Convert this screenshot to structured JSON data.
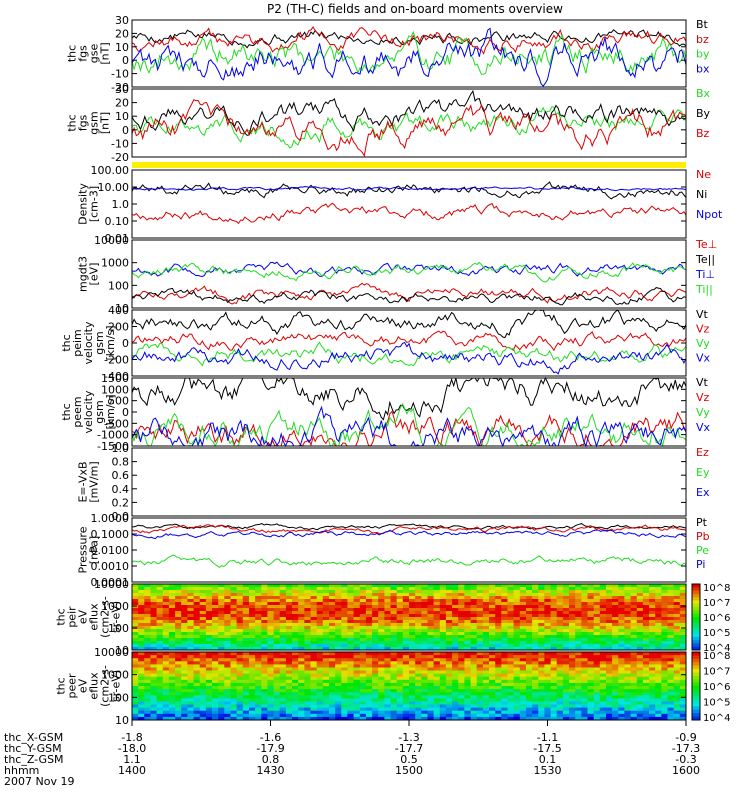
{
  "title": "P2 (TH-C) fields and on-board moments overview",
  "x_axis": {
    "rows": [
      {
        "label": "thc_X-GSM",
        "values": [
          "-1.8",
          "-1.6",
          "-1.3",
          "-1.1",
          "-0.9"
        ]
      },
      {
        "label": "thc_Y-GSM",
        "values": [
          "-18.0",
          "-17.9",
          "-17.7",
          "-17.5",
          "-17.3"
        ]
      },
      {
        "label": "thc_Z-GSM",
        "values": [
          "1.1",
          "0.8",
          "0.5",
          "0.1",
          "-0.3"
        ]
      },
      {
        "label": "hhmm",
        "values": [
          "1400",
          "1430",
          "1500",
          "1530",
          "1600"
        ]
      }
    ],
    "date": "2007 Nov 19"
  },
  "colors": {
    "black": "#000000",
    "red": "#dd0000",
    "green": "#22dd22",
    "blue": "#0000ee",
    "yellow": "#ffee00"
  },
  "chart_data": [
    {
      "type": "line",
      "ylabel": [
        "thc",
        "fgs",
        "gse",
        "[nT]"
      ],
      "ylim": [
        -20,
        30
      ],
      "yticks": [
        -20,
        -10,
        0,
        10,
        20,
        30
      ],
      "series": [
        {
          "name": "Bt",
          "color": "black",
          "level": 18,
          "amp": 3
        },
        {
          "name": "bz",
          "color": "red",
          "level": 15,
          "amp": 4
        },
        {
          "name": "by",
          "color": "green",
          "level": 3,
          "amp": 7
        },
        {
          "name": "bx",
          "color": "blue",
          "level": 2,
          "amp": 8
        }
      ]
    },
    {
      "type": "line",
      "ylabel": [
        "thc",
        "fgs",
        "gsm",
        "[nT]"
      ],
      "ylim": [
        -20,
        30
      ],
      "yticks": [
        -20,
        -10,
        0,
        10,
        20,
        30
      ],
      "series": [
        {
          "name": "Bx",
          "color": "green",
          "level": 5,
          "amp": 5
        },
        {
          "name": "By",
          "color": "black",
          "level": 12,
          "amp": 5
        },
        {
          "name": "Bz",
          "color": "red",
          "level": 0,
          "amp": 6
        }
      ]
    },
    {
      "type": "line",
      "ylabel": [
        "Density",
        "[cm-3]"
      ],
      "log": true,
      "ylim": [
        0.01,
        100
      ],
      "yticks": [
        "0.01",
        "0.10",
        "1.0",
        "10.00",
        "100.00"
      ],
      "series": [
        {
          "name": "Ne",
          "color": "red",
          "level": 0.3,
          "amp": 0.4
        },
        {
          "name": "Ni",
          "color": "black",
          "level": 7,
          "amp": 0.4
        },
        {
          "name": "Npot",
          "color": "blue",
          "level": 8,
          "amp": 0.1
        }
      ]
    },
    {
      "type": "line",
      "ylabel": [
        "mgdt3",
        "[eV]"
      ],
      "log": true,
      "ylim": [
        10,
        10000
      ],
      "yticks": [
        "10",
        "100",
        "1000",
        "10000"
      ],
      "series": [
        {
          "name": "Te⊥",
          "color": "red",
          "level": 40,
          "amp": 0.3
        },
        {
          "name": "Te||",
          "color": "black",
          "level": 30,
          "amp": 0.3
        },
        {
          "name": "Ti⊥",
          "color": "blue",
          "level": 500,
          "amp": 0.3
        },
        {
          "name": "Ti||",
          "color": "green",
          "level": 450,
          "amp": 0.3
        }
      ]
    },
    {
      "type": "line",
      "ylabel": [
        "thc",
        "peim",
        "velocity",
        "gsm",
        "[km/s]"
      ],
      "ylim": [
        -400,
        400
      ],
      "yticks": [
        -400,
        -200,
        0,
        200,
        400
      ],
      "series": [
        {
          "name": "Vt",
          "color": "black",
          "level": 250,
          "amp": 60
        },
        {
          "name": "Vz",
          "color": "red",
          "level": 30,
          "amp": 50
        },
        {
          "name": "Vy",
          "color": "green",
          "level": -120,
          "amp": 60
        },
        {
          "name": "Vx",
          "color": "blue",
          "level": -180,
          "amp": 60
        }
      ]
    },
    {
      "type": "line",
      "ylabel": [
        "thc",
        "peem",
        "velocity",
        "gsm",
        "[km/s]"
      ],
      "ylim": [
        -1500,
        1500
      ],
      "yticks": [
        -1500,
        -1000,
        -500,
        0,
        500,
        1000,
        1500
      ],
      "series": [
        {
          "name": "Vt",
          "color": "black",
          "level": 1000,
          "amp": 400
        },
        {
          "name": "Vz",
          "color": "red",
          "level": -700,
          "amp": 400
        },
        {
          "name": "Vy",
          "color": "green",
          "level": -800,
          "amp": 400
        },
        {
          "name": "Vx",
          "color": "blue",
          "level": -1000,
          "amp": 400
        }
      ]
    },
    {
      "type": "line",
      "ylabel": [
        "E=-VxB",
        "[mV/m]"
      ],
      "ylim": [
        0.0,
        1.0
      ],
      "yticks": [
        "0.0",
        "0.2",
        "0.4",
        "0.6",
        "0.8",
        "1.0"
      ],
      "series": [
        {
          "name": "Ez",
          "color": "red"
        },
        {
          "name": "Ey",
          "color": "green"
        },
        {
          "name": "Ex",
          "color": "blue"
        }
      ]
    },
    {
      "type": "line",
      "ylabel": [
        "Pressure",
        "[nPa]"
      ],
      "log": true,
      "ylim": [
        0.0001,
        1
      ],
      "yticks": [
        "0.0001",
        "0.0010",
        "0.0100",
        "0.1000",
        "1.0000"
      ],
      "series": [
        {
          "name": "Pt",
          "color": "black",
          "level": 0.3,
          "amp": 0.15
        },
        {
          "name": "Pb",
          "color": "red",
          "level": 0.2,
          "amp": 0.2
        },
        {
          "name": "Pe",
          "color": "green",
          "level": 0.002,
          "amp": 0.3
        },
        {
          "name": "Pi",
          "color": "blue",
          "level": 0.1,
          "amp": 0.2
        }
      ]
    },
    {
      "type": "heatmap",
      "ylabel": [
        "thc",
        "peir",
        "eV",
        "eflux",
        "(cm2-s-",
        "sr-eV)"
      ],
      "log": true,
      "ylim": [
        10,
        10000
      ],
      "yticks": [
        "10",
        "100",
        "1000",
        "10000"
      ],
      "colorbar": {
        "ticks": [
          "10^4",
          "10^5",
          "10^6",
          "10^7",
          "10^8"
        ]
      }
    },
    {
      "type": "heatmap",
      "ylabel": [
        "thc",
        "peer",
        "eV",
        "eflux",
        "(cm2-s-",
        "sr-eV)"
      ],
      "log": true,
      "ylim": [
        10,
        10000
      ],
      "yticks": [
        "10",
        "100",
        "1000",
        "10000"
      ],
      "colorbar": {
        "ticks": [
          "10^4",
          "10^5",
          "10^6",
          "10^7",
          "10^8"
        ]
      }
    }
  ]
}
